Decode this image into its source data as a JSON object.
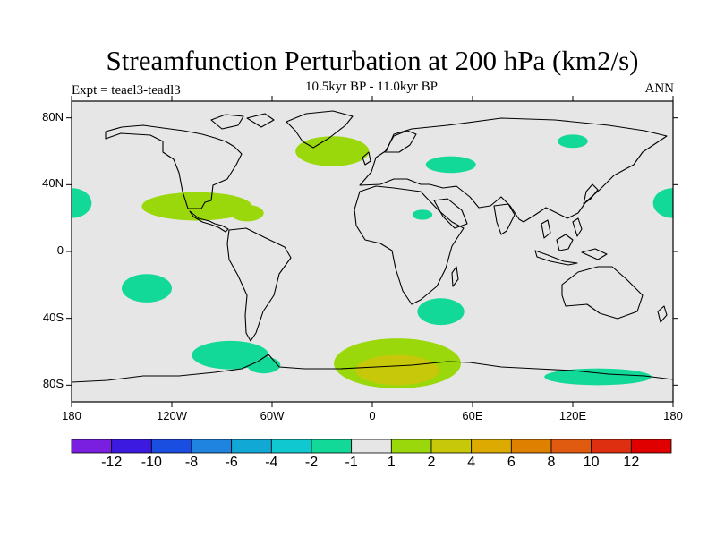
{
  "title": "Streamfunction Perturbation at 200 hPa (km2/s)",
  "subtitle": "10.5kyr BP - 11.0kyr BP",
  "left_label": "Expt = teael3-teadl3",
  "right_label": "ANN",
  "chart_data": {
    "type": "heatmap",
    "projection": "cylindrical-equidistant",
    "lon_range": [
      -180,
      180
    ],
    "lat_range": [
      -90,
      90
    ],
    "lat_ticks": [
      {
        "value": 80,
        "label": "80N"
      },
      {
        "value": 40,
        "label": "40N"
      },
      {
        "value": 0,
        "label": "0"
      },
      {
        "value": -40,
        "label": "40S"
      },
      {
        "value": -80,
        "label": "80S"
      }
    ],
    "lon_ticks": [
      {
        "value": -180,
        "label": "180"
      },
      {
        "value": -120,
        "label": "120W"
      },
      {
        "value": -60,
        "label": "60W"
      },
      {
        "value": 0,
        "label": "0"
      },
      {
        "value": 60,
        "label": "60E"
      },
      {
        "value": 120,
        "label": "120E"
      },
      {
        "value": 180,
        "label": "180"
      }
    ],
    "colorbar": {
      "labels": [
        "-12",
        "-10",
        "-8",
        "-6",
        "-4",
        "-2",
        "-1",
        "1",
        "2",
        "4",
        "6",
        "8",
        "10",
        "12"
      ],
      "colors": [
        "#7a1ee0",
        "#3c1ae0",
        "#1a4ee0",
        "#1f84e0",
        "#12a8d6",
        "#10c8d0",
        "#12d898",
        "#e6e6e6",
        "#9ad80c",
        "#c8c80a",
        "#dcaa00",
        "#e08000",
        "#e05a10",
        "#de3010",
        "#e00000"
      ]
    },
    "anomaly_regions": [
      {
        "level": 1,
        "lon": -105,
        "lat": 27,
        "rx": 33,
        "ry": 8.5
      },
      {
        "level": 1,
        "lon": -75,
        "lat": 23,
        "rx": 10,
        "ry": 5
      },
      {
        "level": 1,
        "lon": -24,
        "lat": 60,
        "rx": 22,
        "ry": 9
      },
      {
        "level": 1,
        "lon": 15,
        "lat": -67,
        "rx": 38,
        "ry": 15
      },
      {
        "level": 2,
        "lon": 15,
        "lat": -71,
        "rx": 25,
        "ry": 9
      },
      {
        "level": -1,
        "lon": 120,
        "lat": 66,
        "rx": 9,
        "ry": 4
      },
      {
        "level": -1,
        "lon": 47,
        "lat": 52,
        "rx": 15,
        "ry": 5
      },
      {
        "level": -1,
        "lon": 30,
        "lat": 22,
        "rx": 6,
        "ry": 3
      },
      {
        "level": -1,
        "lon": -180,
        "lat": 29,
        "rx": 12,
        "ry": 9
      },
      {
        "level": -1,
        "lon": 180,
        "lat": 29,
        "rx": 12,
        "ry": 9
      },
      {
        "level": -1,
        "lon": -135,
        "lat": -22,
        "rx": 15,
        "ry": 8.5
      },
      {
        "level": -1,
        "lon": 41,
        "lat": -36,
        "rx": 14,
        "ry": 8
      },
      {
        "level": -1,
        "lon": -85,
        "lat": -62,
        "rx": 23,
        "ry": 8.5
      },
      {
        "level": -1,
        "lon": -65,
        "lat": -68,
        "rx": 10,
        "ry": 5
      },
      {
        "level": -1,
        "lon": 135,
        "lat": -75,
        "rx": 32,
        "ry": 5
      }
    ]
  }
}
